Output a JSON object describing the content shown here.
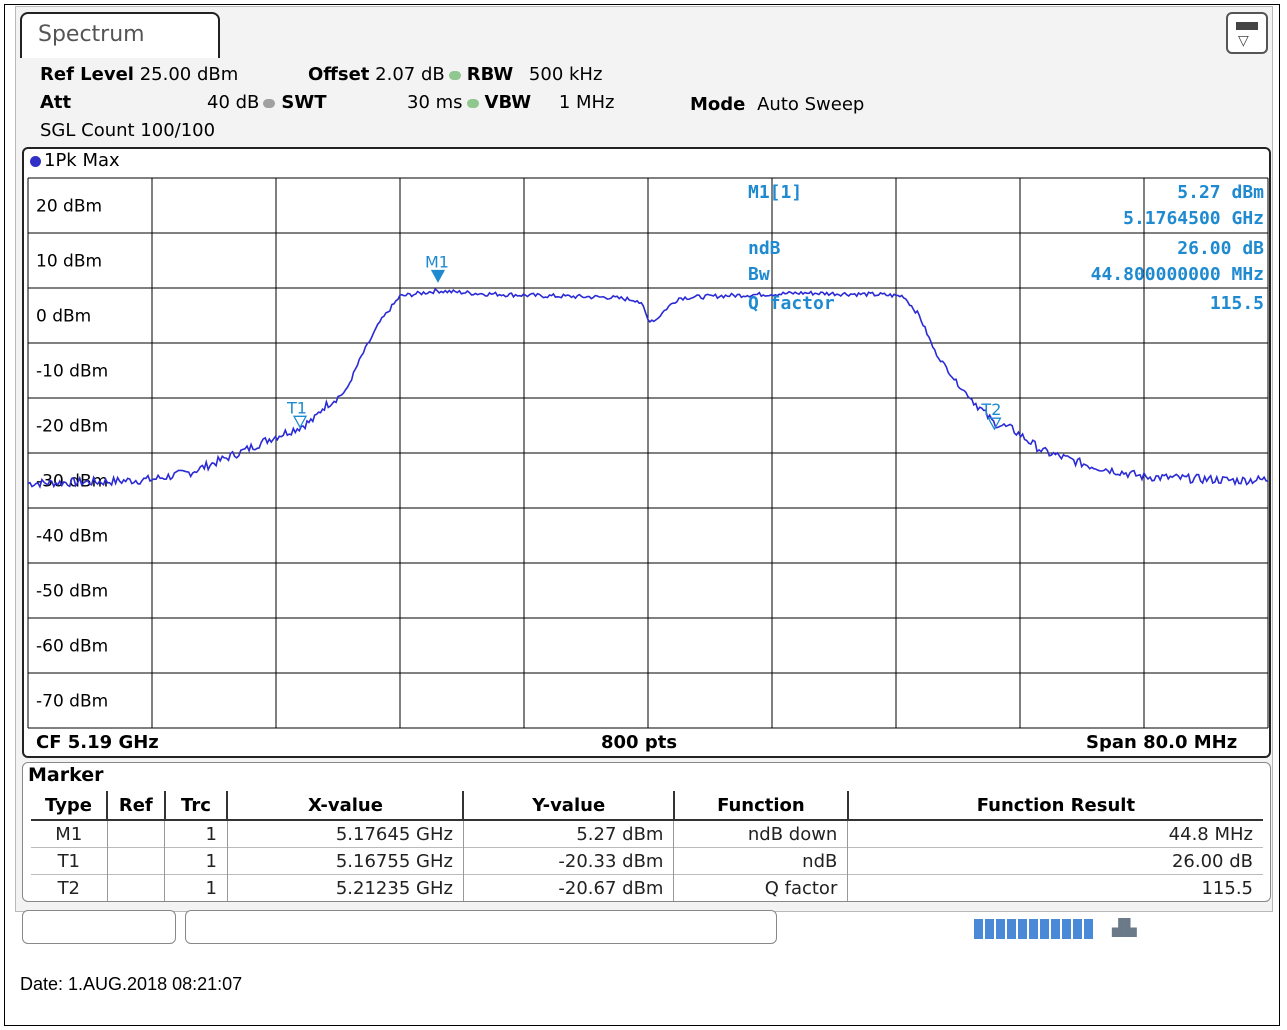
{
  "window": {
    "tab_title": "Spectrum"
  },
  "settings": {
    "ref_level_label": "Ref Level",
    "ref_level_value": "25.00 dBm",
    "offset_label": "Offset",
    "offset_value": "2.07 dB",
    "rbw_label": "RBW",
    "rbw_value": "500 kHz",
    "att_label": "Att",
    "att_value": "40 dB",
    "swt_label": "SWT",
    "swt_value": "30 ms",
    "vbw_label": "VBW",
    "vbw_value": "1 MHz",
    "mode_label": "Mode",
    "mode_value": "Auto Sweep",
    "sgl_count": "SGL Count 100/100"
  },
  "trace_label": "1Pk Max",
  "chart_data": {
    "type": "line",
    "series": [
      {
        "points": [
          [
            5.15,
            -30.5
          ],
          [
            5.155,
            -30.2
          ],
          [
            5.158,
            -29.8
          ],
          [
            5.1605,
            -28.5
          ],
          [
            5.162,
            -26.8
          ],
          [
            5.164,
            -24.5
          ],
          [
            5.1657,
            -22.3
          ],
          [
            5.1675,
            -20.33
          ],
          [
            5.1685,
            -18.8
          ],
          [
            5.169,
            -16.8
          ],
          [
            5.1705,
            -13.8
          ],
          [
            5.1715,
            -7.5
          ],
          [
            5.1727,
            -1.2
          ],
          [
            5.174,
            3.5
          ],
          [
            5.1764,
            4.5
          ],
          [
            5.179,
            4.0
          ],
          [
            5.183,
            3.6
          ],
          [
            5.1875,
            3.3
          ],
          [
            5.1893,
            2.8
          ],
          [
            5.1897,
            1.5
          ],
          [
            5.19,
            -0.8
          ],
          [
            5.1905,
            -0.8
          ],
          [
            5.1912,
            1.3
          ],
          [
            5.192,
            3.2
          ],
          [
            5.195,
            3.6
          ],
          [
            5.2,
            4.1
          ],
          [
            5.205,
            3.8
          ],
          [
            5.2065,
            3.5
          ],
          [
            5.2075,
            0
          ],
          [
            5.2085,
            -6.5
          ],
          [
            5.21,
            -12.5
          ],
          [
            5.2123,
            -19.5
          ],
          [
            5.2135,
            -20.67
          ],
          [
            5.2155,
            -24.7
          ],
          [
            5.2185,
            -27.3
          ],
          [
            5.222,
            -29.3
          ],
          [
            5.228,
            -30.0
          ],
          [
            5.23,
            -29.8
          ]
        ]
      }
    ],
    "y_ticks": [
      "20 dBm",
      "10 dBm",
      "0 dBm",
      "-10 dBm",
      "-20 dBm",
      "-30 dBm",
      "-40 dBm",
      "-50 dBm",
      "-60 dBm",
      "-70 dBm"
    ],
    "ylim": [
      -75,
      25
    ],
    "xlim": [
      5.15,
      5.23
    ],
    "grid": true,
    "center_label": "CF 5.19 GHz",
    "points_label": "800 pts",
    "span_label": "Span 80.0 MHz",
    "markers": [
      {
        "label": "M1",
        "x": 5.17645,
        "y": 5.27,
        "type": "down"
      },
      {
        "label": "T1",
        "x": 5.16755,
        "y": -20.33,
        "type": "temp"
      },
      {
        "label": "T2",
        "x": 5.21235,
        "y": -20.67,
        "type": "temp"
      }
    ],
    "marker_readout": {
      "m_label": "M1[1]",
      "m_value": "5.27 dBm",
      "m_freq": "5.1764500 GHz",
      "ndb_label": "ndB",
      "ndb_value": "26.00 dB",
      "bw_label": "Bw",
      "bw_value": "44.800000000 MHz",
      "q_label": "Q factor",
      "q_value": "115.5"
    }
  },
  "marker_table": {
    "title": "Marker",
    "headers": [
      "Type",
      "Ref",
      "Trc",
      "X-value",
      "Y-value",
      "Function",
      "Function Result"
    ],
    "rows": [
      [
        "M1",
        "",
        "1",
        "5.17645 GHz",
        "5.27 dBm",
        "ndB down",
        "44.8 MHz"
      ],
      [
        "T1",
        "",
        "1",
        "5.16755 GHz",
        "-20.33 dBm",
        "ndB",
        "26.00 dB"
      ],
      [
        "T2",
        "",
        "1",
        "5.21235 GHz",
        "-20.67 dBm",
        "Q factor",
        "115.5"
      ]
    ]
  },
  "status": {
    "date": "Date: 1.AUG.2018  08:21:07",
    "progress": 1.0
  },
  "colors": {
    "trace": "#2b2bd6",
    "marker_text": "#1f8ad0",
    "grid": "#000000"
  }
}
